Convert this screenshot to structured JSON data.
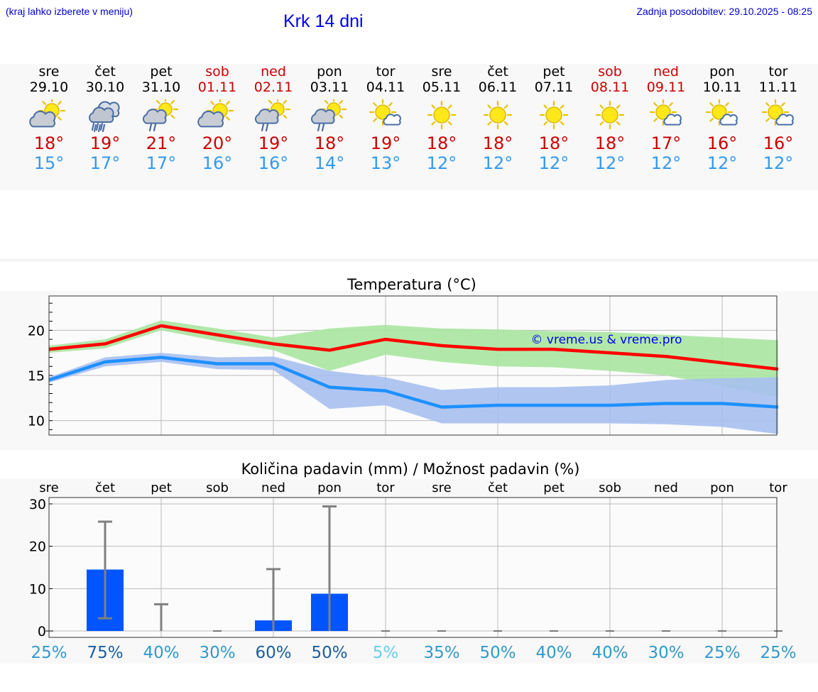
{
  "header": {
    "menu_hint": "(kraj lahko izberete v meniju)",
    "title": "Krk 14 dni",
    "last_update": "Zadnja posodobitev: 29.10.2025 - 08:25"
  },
  "colors": {
    "max_temp": "#cc0000",
    "min_temp": "#3399ee",
    "weekend": "#cc0000",
    "max_line": "#ff0000",
    "min_line": "#1e90ff",
    "max_band": "#a8e6a0",
    "min_band": "#a7c0f0",
    "precip_bar": "#0055ff",
    "whisker": "#808080"
  },
  "days": [
    {
      "name": "sre",
      "date": "29.10",
      "weekend": false,
      "icon": "sun-cloud-icon",
      "max": "18°",
      "min": "15°"
    },
    {
      "name": "čet",
      "date": "30.10",
      "weekend": false,
      "icon": "heavy-rain-icon",
      "max": "19°",
      "min": "17°"
    },
    {
      "name": "pet",
      "date": "31.10",
      "weekend": false,
      "icon": "sun-cloud-rain-icon",
      "max": "21°",
      "min": "17°"
    },
    {
      "name": "sob",
      "date": "01.11",
      "weekend": true,
      "icon": "sun-cloud-icon",
      "max": "20°",
      "min": "16°"
    },
    {
      "name": "ned",
      "date": "02.11",
      "weekend": true,
      "icon": "sun-cloud-rain-icon",
      "max": "19°",
      "min": "16°"
    },
    {
      "name": "pon",
      "date": "03.11",
      "weekend": false,
      "icon": "sun-cloud-rain-icon",
      "max": "18°",
      "min": "14°"
    },
    {
      "name": "tor",
      "date": "04.11",
      "weekend": false,
      "icon": "sun-small-cloud-icon",
      "max": "19°",
      "min": "13°"
    },
    {
      "name": "sre",
      "date": "05.11",
      "weekend": false,
      "icon": "sun-icon",
      "max": "18°",
      "min": "12°"
    },
    {
      "name": "čet",
      "date": "06.11",
      "weekend": false,
      "icon": "sun-icon",
      "max": "18°",
      "min": "12°"
    },
    {
      "name": "pet",
      "date": "07.11",
      "weekend": false,
      "icon": "sun-icon",
      "max": "18°",
      "min": "12°"
    },
    {
      "name": "sob",
      "date": "08.11",
      "weekend": true,
      "icon": "sun-icon",
      "max": "18°",
      "min": "12°"
    },
    {
      "name": "ned",
      "date": "09.11",
      "weekend": true,
      "icon": "sun-small-cloud-icon",
      "max": "17°",
      "min": "12°"
    },
    {
      "name": "pon",
      "date": "10.11",
      "weekend": false,
      "icon": "sun-small-cloud-icon",
      "max": "16°",
      "min": "12°"
    },
    {
      "name": "tor",
      "date": "11.11",
      "weekend": false,
      "icon": "sun-small-cloud-icon",
      "max": "16°",
      "min": "12°"
    }
  ],
  "chart_data": [
    {
      "type": "line",
      "title": "Temperatura (°C)",
      "xlabel": "",
      "ylabel": "",
      "ylim": [
        8.4,
        23.8
      ],
      "yticks": [
        10,
        15,
        20
      ],
      "x": [
        "29.10",
        "30.10",
        "31.10",
        "01.11",
        "02.11",
        "03.11",
        "04.11",
        "05.11",
        "06.11",
        "07.11",
        "08.11",
        "09.11",
        "10.11",
        "11.11"
      ],
      "watermark": "© vreme.us & vreme.pro",
      "series": [
        {
          "name": "max",
          "values": [
            17.9,
            18.5,
            20.5,
            19.5,
            18.5,
            17.8,
            19.0,
            18.3,
            17.9,
            17.9,
            17.5,
            17.1,
            16.4,
            15.7
          ]
        },
        {
          "name": "max_band",
          "lower": [
            17.5,
            18.0,
            20.0,
            18.8,
            17.8,
            15.5,
            17.3,
            16.5,
            16.0,
            15.9,
            15.5,
            15.0,
            13.8,
            12.6
          ],
          "upper": [
            18.3,
            19.0,
            21.1,
            20.2,
            19.2,
            20.2,
            20.6,
            20.2,
            20.1,
            19.9,
            19.8,
            19.5,
            19.2,
            18.9
          ]
        },
        {
          "name": "min",
          "values": [
            14.5,
            16.5,
            17.0,
            16.3,
            16.3,
            13.7,
            13.3,
            11.5,
            11.7,
            11.7,
            11.7,
            11.9,
            11.9,
            11.5
          ]
        },
        {
          "name": "min_band",
          "lower": [
            14.2,
            16.0,
            16.5,
            15.7,
            15.6,
            11.3,
            11.7,
            9.7,
            9.7,
            9.7,
            9.7,
            9.6,
            9.3,
            8.5
          ],
          "upper": [
            14.8,
            17.0,
            17.5,
            17.0,
            17.1,
            15.5,
            14.8,
            13.4,
            13.7,
            13.7,
            13.9,
            14.5,
            14.7,
            14.8
          ]
        }
      ]
    },
    {
      "type": "bar",
      "title": "Količina padavin (mm) / Možnost padavin (%)",
      "xlabel": "",
      "ylabel": "",
      "ylim": [
        -1.5,
        31.5
      ],
      "yticks": [
        0,
        10,
        20,
        30
      ],
      "categories": [
        "sre",
        "čet",
        "pet",
        "sob",
        "ned",
        "pon",
        "tor",
        "sre",
        "čet",
        "pet",
        "sob",
        "ned",
        "pon",
        "tor"
      ],
      "values": [
        0,
        14.5,
        0,
        0,
        2.5,
        8.8,
        0,
        0,
        0,
        0,
        0,
        0,
        0,
        0
      ],
      "err_low": [
        0,
        3,
        0,
        0,
        0,
        0,
        0,
        0,
        0,
        0,
        0,
        0,
        0,
        0
      ],
      "err_high": [
        0,
        25.8,
        6.3,
        0,
        14.6,
        29.4,
        0,
        0,
        0,
        0,
        0,
        0,
        0,
        0
      ],
      "probability": [
        "25%",
        "75%",
        "40%",
        "30%",
        "60%",
        "50%",
        "5%",
        "35%",
        "50%",
        "40%",
        "40%",
        "30%",
        "25%",
        "25%"
      ],
      "probability_colors": [
        "#3399cc",
        "#1a5fa0",
        "#3399cc",
        "#3399cc",
        "#1a5fa0",
        "#1a5fa0",
        "#66d0e8",
        "#3399cc",
        "#3399cc",
        "#3399cc",
        "#3399cc",
        "#3399cc",
        "#3399cc",
        "#3399cc"
      ]
    }
  ]
}
